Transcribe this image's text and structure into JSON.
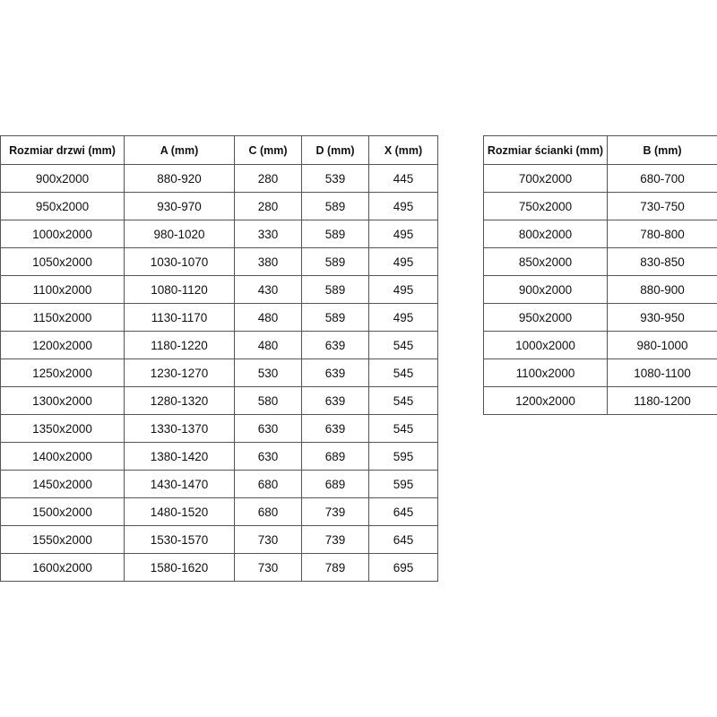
{
  "doors_table": {
    "headers": [
      "Rozmiar drzwi (mm)",
      "A (mm)",
      "C (mm)",
      "D (mm)",
      "X (mm)"
    ],
    "rows": [
      [
        "900x2000",
        "880-920",
        "280",
        "539",
        "445"
      ],
      [
        "950x2000",
        "930-970",
        "280",
        "589",
        "495"
      ],
      [
        "1000x2000",
        "980-1020",
        "330",
        "589",
        "495"
      ],
      [
        "1050x2000",
        "1030-1070",
        "380",
        "589",
        "495"
      ],
      [
        "1100x2000",
        "1080-1120",
        "430",
        "589",
        "495"
      ],
      [
        "1150x2000",
        "1130-1170",
        "480",
        "589",
        "495"
      ],
      [
        "1200x2000",
        "1180-1220",
        "480",
        "639",
        "545"
      ],
      [
        "1250x2000",
        "1230-1270",
        "530",
        "639",
        "545"
      ],
      [
        "1300x2000",
        "1280-1320",
        "580",
        "639",
        "545"
      ],
      [
        "1350x2000",
        "1330-1370",
        "630",
        "639",
        "545"
      ],
      [
        "1400x2000",
        "1380-1420",
        "630",
        "689",
        "595"
      ],
      [
        "1450x2000",
        "1430-1470",
        "680",
        "689",
        "595"
      ],
      [
        "1500x2000",
        "1480-1520",
        "680",
        "739",
        "645"
      ],
      [
        "1550x2000",
        "1530-1570",
        "730",
        "739",
        "645"
      ],
      [
        "1600x2000",
        "1580-1620",
        "730",
        "789",
        "695"
      ]
    ]
  },
  "walls_table": {
    "headers": [
      "Rozmiar ścianki (mm)",
      "B (mm)"
    ],
    "rows": [
      [
        "700x2000",
        "680-700"
      ],
      [
        "750x2000",
        "730-750"
      ],
      [
        "800x2000",
        "780-800"
      ],
      [
        "850x2000",
        "830-850"
      ],
      [
        "900x2000",
        "880-900"
      ],
      [
        "950x2000",
        "930-950"
      ],
      [
        "1000x2000",
        "980-1000"
      ],
      [
        "1100x2000",
        "1080-1100"
      ],
      [
        "1200x2000",
        "1180-1200"
      ]
    ]
  }
}
